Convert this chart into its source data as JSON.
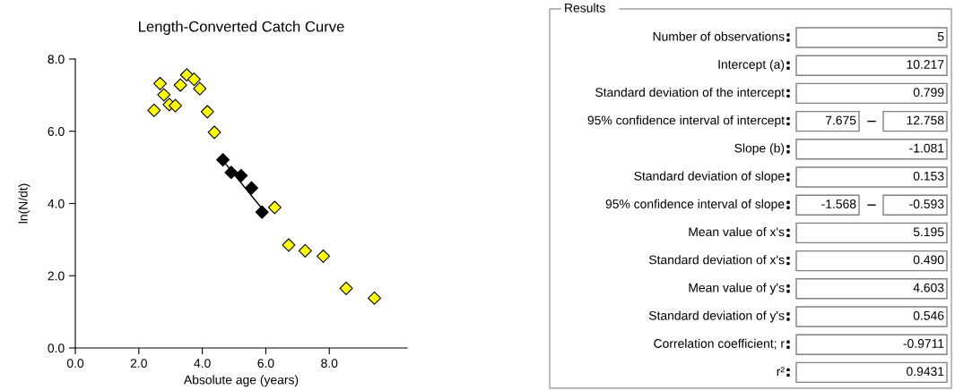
{
  "chart_data": [
    {
      "type": "scatter",
      "title": "Length-Converted Catch Curve",
      "xlabel": "Absolute age (years)",
      "ylabel": "ln(N/dt)",
      "xlim": [
        0,
        10.45
      ],
      "ylim": [
        0,
        8
      ],
      "xticks": [
        {
          "value": 0,
          "label": "0.0"
        },
        {
          "value": 2,
          "label": "2.0"
        },
        {
          "value": 4,
          "label": "4.0"
        },
        {
          "value": 6,
          "label": "6.0"
        },
        {
          "value": 8,
          "label": "8.0"
        }
      ],
      "yticks": [
        {
          "value": 0,
          "label": "0.0"
        },
        {
          "value": 2,
          "label": "2.0"
        },
        {
          "value": 4,
          "label": "4.0"
        },
        {
          "value": 6,
          "label": "6.0"
        },
        {
          "value": 8,
          "label": "8.0"
        }
      ],
      "series": [
        {
          "type": "line",
          "color": "#000000",
          "marker": "none",
          "x": [
            4.65,
            5.88
          ],
          "values": [
            5.19,
            3.86
          ]
        },
        {
          "type": "scatter",
          "color": "#ffff00",
          "marker": "diamond",
          "x": [
            2.48,
            2.67,
            2.79,
            2.96,
            3.15,
            3.31,
            3.51,
            3.74,
            3.92,
            4.16,
            4.38,
            6.28,
            6.72,
            7.24,
            7.81,
            8.53,
            9.42
          ],
          "values": [
            6.58,
            7.32,
            7.01,
            6.74,
            6.71,
            7.28,
            7.56,
            7.44,
            7.18,
            6.54,
            5.97,
            3.89,
            2.85,
            2.69,
            2.54,
            1.65,
            1.38
          ]
        },
        {
          "type": "scatter",
          "color": "#000000",
          "marker": "diamond",
          "x": [
            4.65,
            4.91,
            5.22,
            5.55,
            5.88
          ],
          "values": [
            5.21,
            4.86,
            4.77,
            4.43,
            3.76
          ]
        }
      ]
    },
    {
      "type": "other",
      "title": "Results",
      "data_labels": true,
      "categories": [
        "Number of observations",
        "Intercept (a)",
        "Standard deviation of the intercept",
        "95% confidence interval of intercept",
        "Slope (b)",
        "Standard deviation of slope",
        "95% confidence interval of slope",
        "Mean value of x's",
        "Standard deviation of x's",
        "Mean value of y's",
        "Standard deviation of y's",
        "Correlation coefficient; r",
        "r²"
      ],
      "series": [
        {
          "values": [
            null,
            null,
            null,
            7.675,
            null,
            null,
            -1.568,
            null,
            null,
            null,
            null,
            null,
            null
          ],
          "value_labels": [
            null,
            null,
            null,
            "7.675",
            null,
            null,
            "-1.568",
            null,
            null,
            null,
            null,
            null,
            null
          ]
        },
        {
          "values": [
            5,
            10.217,
            0.799,
            12.758,
            -1.081,
            0.153,
            -0.593,
            5.195,
            0.49,
            4.603,
            0.546,
            -0.9711,
            0.9431
          ],
          "value_labels": [
            "5",
            "10.217",
            "0.799",
            "12.758",
            "-1.081",
            "0.153",
            "-0.593",
            "5.195",
            "0.490",
            "4.603",
            "0.546",
            "-0.9711",
            "0.9431"
          ]
        }
      ]
    }
  ]
}
